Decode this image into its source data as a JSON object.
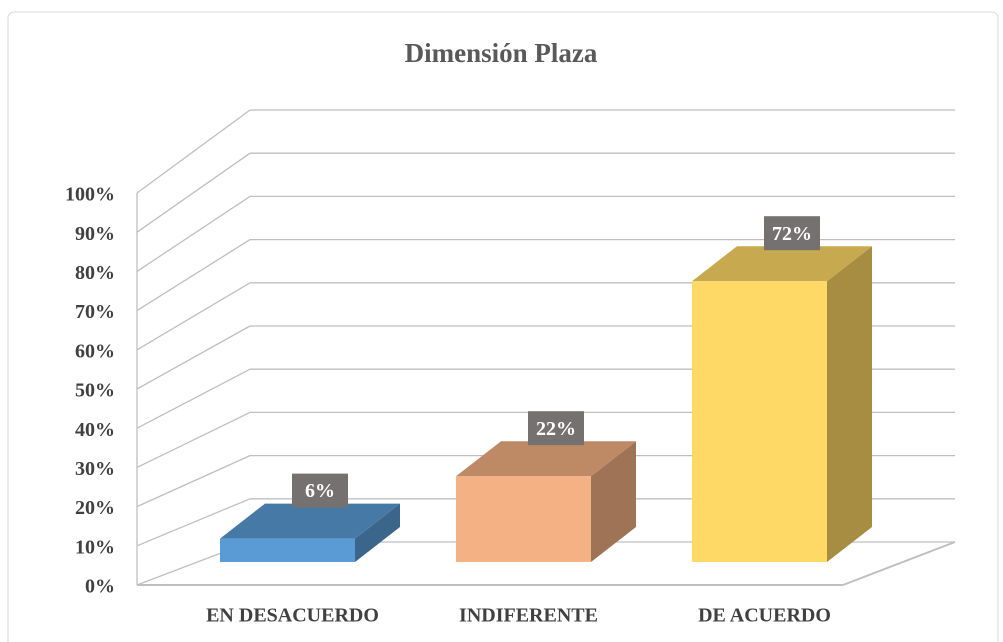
{
  "chart_data": {
    "type": "bar",
    "title": "Dimensión Plaza",
    "categories": [
      "EN DESACUERDO",
      "INDIFERENTE",
      "DE ACUERDO"
    ],
    "values": [
      6,
      22,
      72
    ],
    "value_labels": [
      "6%",
      "22%",
      "72%"
    ],
    "colors": [
      "#5b9bd5",
      "#f4b183",
      "#ffd966"
    ],
    "ylim": [
      0,
      100
    ],
    "yticks": [
      {
        "value": 0,
        "label": "0%"
      },
      {
        "value": 10,
        "label": "10%"
      },
      {
        "value": 20,
        "label": "20%"
      },
      {
        "value": 30,
        "label": "30%"
      },
      {
        "value": 40,
        "label": "40%"
      },
      {
        "value": 50,
        "label": "50%"
      },
      {
        "value": 60,
        "label": "60%"
      },
      {
        "value": 70,
        "label": "70%"
      },
      {
        "value": 80,
        "label": "80%"
      },
      {
        "value": 90,
        "label": "90%"
      },
      {
        "value": 100,
        "label": "100%"
      }
    ],
    "grid": true
  }
}
